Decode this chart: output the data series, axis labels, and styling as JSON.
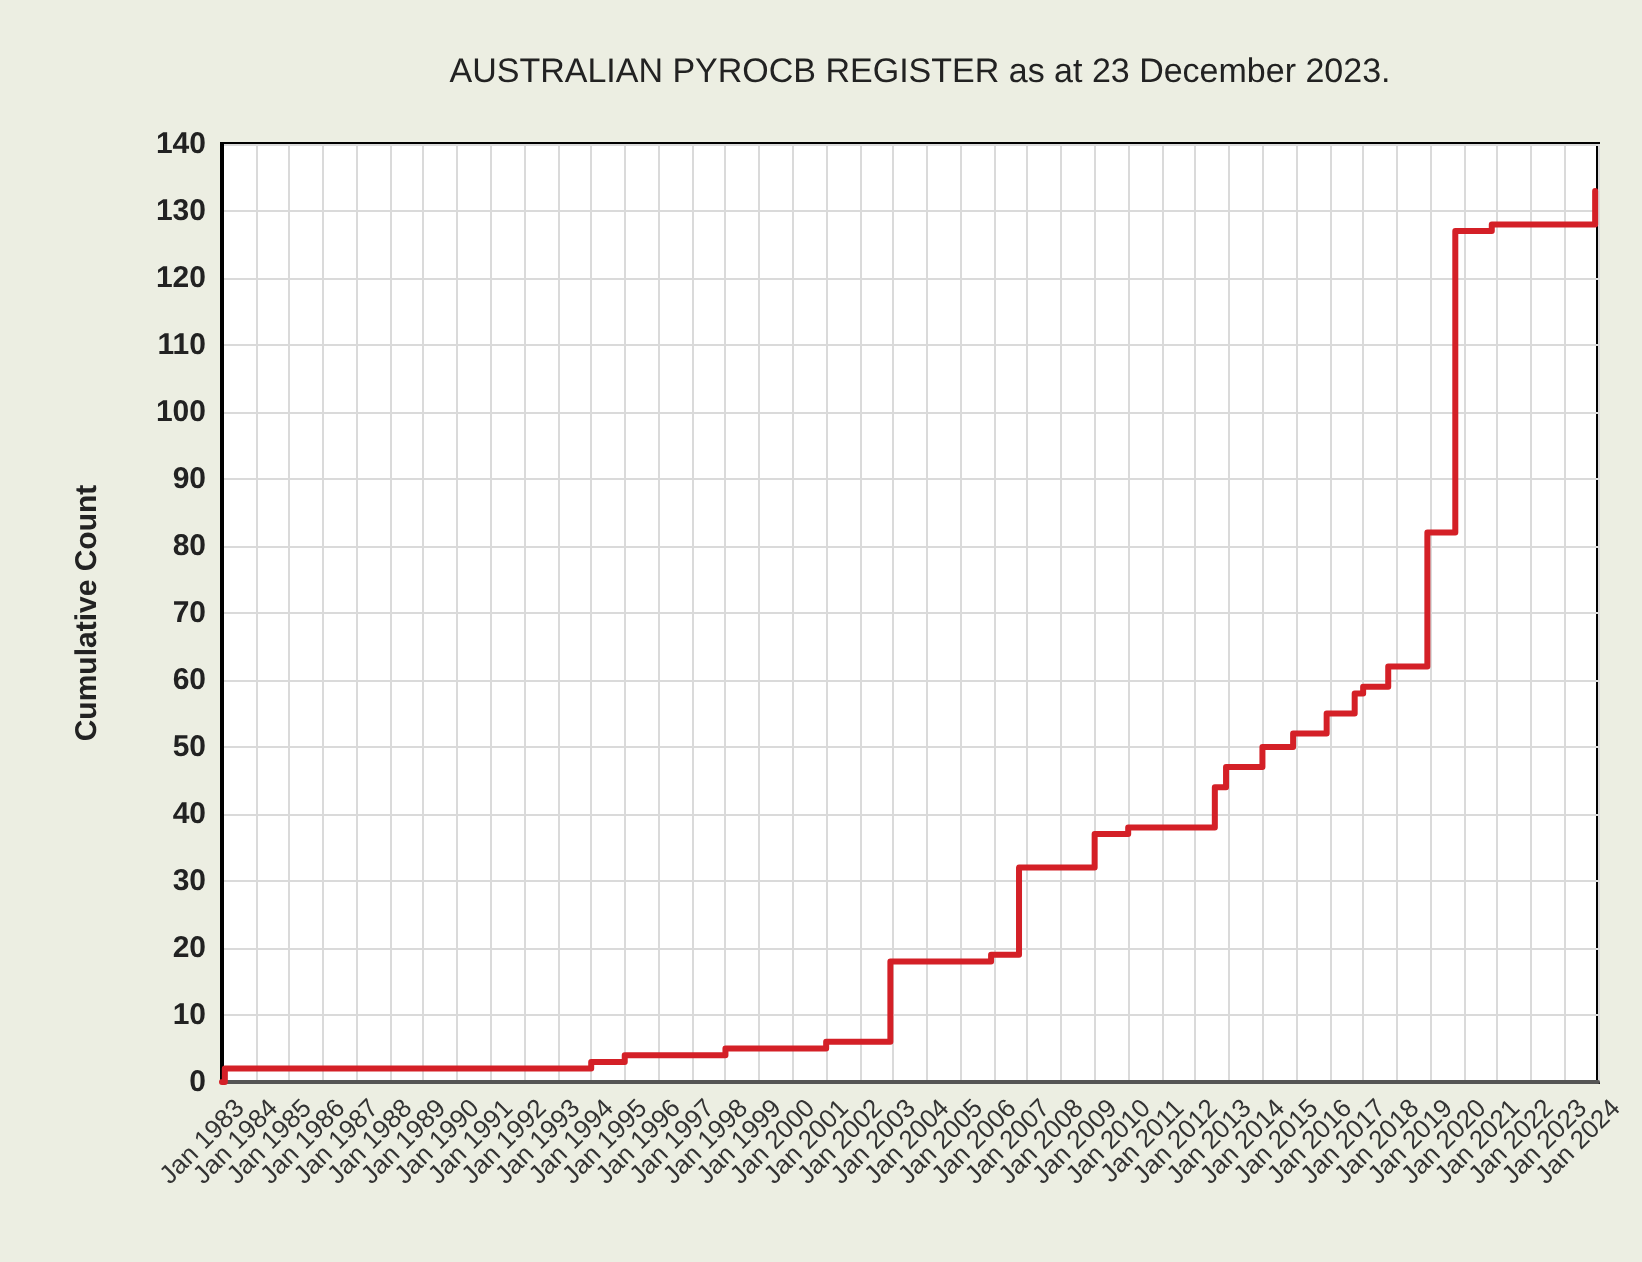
{
  "chart_data": {
    "type": "step",
    "title": "AUSTRALIAN PYROCB REGISTER as at 23 December 2023.",
    "ylabel": "Cumulative Count",
    "x": [
      "1983-01",
      "1983-02",
      "1994-01",
      "1995-01",
      "1998-01",
      "2001-01",
      "2002-12",
      "2005-12",
      "2006-10",
      "2009-01",
      "2010-01",
      "2012-08",
      "2012-12",
      "2014-01",
      "2014-12",
      "2015-12",
      "2016-10",
      "2017-01",
      "2017-10",
      "2018-12",
      "2019-10",
      "2020-11",
      "2023-08",
      "2023-12"
    ],
    "series": [
      {
        "color": "#d42027",
        "values": [
          0,
          2,
          3,
          4,
          5,
          6,
          18,
          19,
          32,
          37,
          38,
          44,
          47,
          50,
          52,
          55,
          58,
          59,
          62,
          82,
          127,
          128,
          128,
          133
        ]
      }
    ],
    "xlim": [
      "1983-01",
      "2024-01"
    ],
    "ylim": [
      0,
      140
    ],
    "yticks": [
      0,
      10,
      20,
      30,
      40,
      50,
      60,
      70,
      80,
      90,
      100,
      110,
      120,
      130,
      140
    ],
    "xticks": [
      {
        "value": "1983-01",
        "label": "Jan 1983"
      },
      {
        "value": "1984-01",
        "label": "Jan 1984"
      },
      {
        "value": "1985-01",
        "label": "Jan 1985"
      },
      {
        "value": "1986-01",
        "label": "Jan 1986"
      },
      {
        "value": "1987-01",
        "label": "Jan 1987"
      },
      {
        "value": "1988-01",
        "label": "Jan 1988"
      },
      {
        "value": "1989-01",
        "label": "Jan 1989"
      },
      {
        "value": "1990-01",
        "label": "Jan 1990"
      },
      {
        "value": "1991-01",
        "label": "Jan 1991"
      },
      {
        "value": "1992-01",
        "label": "Jan 1992"
      },
      {
        "value": "1993-01",
        "label": "Jan 1993"
      },
      {
        "value": "1994-01",
        "label": "Jan 1994"
      },
      {
        "value": "1995-01",
        "label": "Jan 1995"
      },
      {
        "value": "1996-01",
        "label": "Jan 1996"
      },
      {
        "value": "1997-01",
        "label": "Jan 1997"
      },
      {
        "value": "1998-01",
        "label": "Jan 1998"
      },
      {
        "value": "1999-01",
        "label": "Jan 1999"
      },
      {
        "value": "2000-01",
        "label": "Jan 2000"
      },
      {
        "value": "2001-01",
        "label": "Jan 2001"
      },
      {
        "value": "2002-01",
        "label": "Jan 2002"
      },
      {
        "value": "2003-01",
        "label": "Jan 2003"
      },
      {
        "value": "2004-01",
        "label": "Jan 2004"
      },
      {
        "value": "2005-01",
        "label": "Jan 2005"
      },
      {
        "value": "2006-01",
        "label": "Jan 2006"
      },
      {
        "value": "2007-01",
        "label": "Jan 2007"
      },
      {
        "value": "2008-01",
        "label": "Jan 2008"
      },
      {
        "value": "2009-01",
        "label": "Jan 2009"
      },
      {
        "value": "2010-01",
        "label": "Jan 2010"
      },
      {
        "value": "2011-01",
        "label": "Jan 2011"
      },
      {
        "value": "2012-01",
        "label": "Jan 2012"
      },
      {
        "value": "2013-01",
        "label": "Jan 2013"
      },
      {
        "value": "2014-01",
        "label": "Jan 2014"
      },
      {
        "value": "2015-01",
        "label": "Jan 2015"
      },
      {
        "value": "2016-01",
        "label": "Jan 2016"
      },
      {
        "value": "2017-01",
        "label": "Jan 2017"
      },
      {
        "value": "2018-01",
        "label": "Jan 2018"
      },
      {
        "value": "2019-01",
        "label": "Jan 2019"
      },
      {
        "value": "2020-01",
        "label": "Jan 2020"
      },
      {
        "value": "2021-01",
        "label": "Jan 2021"
      },
      {
        "value": "2022-01",
        "label": "Jan 2022"
      },
      {
        "value": "2023-01",
        "label": "Jan 2023"
      },
      {
        "value": "2024-01",
        "label": "Jan 2024"
      }
    ],
    "grid": true,
    "marker": "none",
    "line_style": "solid"
  }
}
